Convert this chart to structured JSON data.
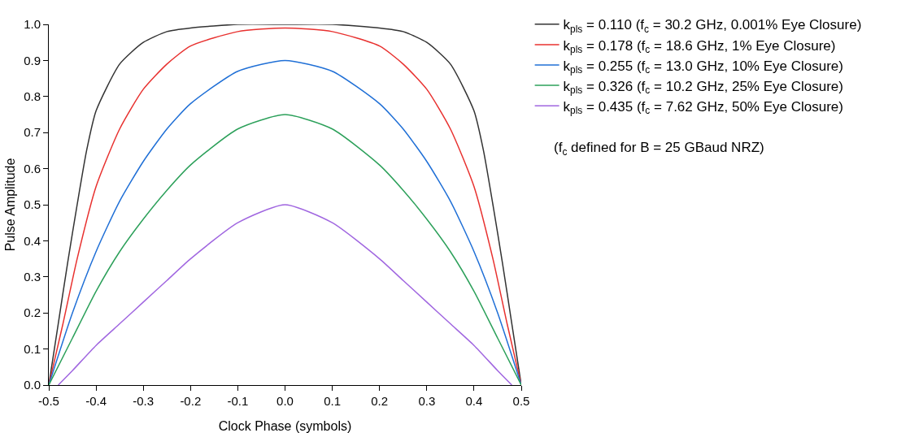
{
  "chart_data": {
    "type": "line",
    "xlabel": "Clock Phase (symbols)",
    "ylabel": "Pulse Amplitude",
    "annotations": [
      "(f$_{c}$ defined for B = 25 GBaud NRZ)"
    ],
    "xlim": [
      -0.5,
      0.5
    ],
    "ylim": [
      0,
      1.0
    ],
    "xticks": [
      -0.5,
      -0.4,
      -0.3,
      -0.2,
      -0.1,
      {
        "value": 0,
        "label": "0.0"
      },
      0.1,
      0.2,
      0.3,
      0.4,
      0.5
    ],
    "yticks": [
      {
        "value": 0,
        "label": "0.0"
      },
      0.1,
      0.2,
      0.3,
      0.4,
      0.5,
      0.6,
      0.7,
      0.8,
      0.9,
      {
        "value": 1,
        "label": "1.0"
      }
    ],
    "grid": false,
    "legend": "top right",
    "marker": "none",
    "line_style": "solid",
    "series": [
      {
        "name": "k$_{pls}$ = 0.110 (f$_{c}$ = 30.2 GHz, 0.001% Eye Closure)",
        "color": "#333333",
        "x": [
          -0.5,
          -0.48,
          -0.46,
          -0.44,
          -0.42,
          -0.4,
          -0.35,
          -0.3,
          -0.25,
          -0.2,
          -0.1,
          0,
          0.1,
          0.2,
          0.25,
          0.3,
          0.35,
          0.4,
          0.42,
          0.44,
          0.46,
          0.48,
          0.5
        ],
        "values": [
          0,
          0.17,
          0.34,
          0.5,
          0.65,
          0.76,
          0.89,
          0.95,
          0.98,
          0.99,
          1.0,
          1.0,
          1.0,
          0.99,
          0.98,
          0.95,
          0.89,
          0.76,
          0.65,
          0.5,
          0.34,
          0.17,
          0
        ]
      },
      {
        "name": "k$_{pls}$ = 0.178 (f$_{c}$ = 18.6 GHz, 1% Eye Closure)",
        "color": "#e8312f",
        "x": [
          -0.5,
          -0.47,
          -0.44,
          -0.4,
          -0.35,
          -0.3,
          -0.25,
          -0.2,
          -0.1,
          0,
          0.1,
          0.2,
          0.25,
          0.3,
          0.35,
          0.4,
          0.44,
          0.47,
          0.5
        ],
        "values": [
          0,
          0.17,
          0.35,
          0.55,
          0.71,
          0.82,
          0.89,
          0.94,
          0.98,
          0.99,
          0.98,
          0.94,
          0.89,
          0.82,
          0.71,
          0.55,
          0.35,
          0.17,
          0
        ]
      },
      {
        "name": "k$_{pls}$ = 0.255 (f$_{c}$ = 13.0 GHz, 10% Eye Closure)",
        "color": "#1f6fd6",
        "x": [
          -0.5,
          -0.45,
          -0.4,
          -0.35,
          -0.3,
          -0.25,
          -0.2,
          -0.1,
          0,
          0.1,
          0.2,
          0.25,
          0.3,
          0.35,
          0.4,
          0.45,
          0.5
        ],
        "values": [
          0,
          0.2,
          0.37,
          0.51,
          0.62,
          0.71,
          0.78,
          0.87,
          0.9,
          0.87,
          0.78,
          0.71,
          0.62,
          0.51,
          0.37,
          0.2,
          0
        ]
      },
      {
        "name": "k$_{pls}$ = 0.326 (f$_{c}$ = 10.2 GHz, 25% Eye Closure)",
        "color": "#2ca05a",
        "x": [
          -0.5,
          -0.45,
          -0.4,
          -0.35,
          -0.3,
          -0.25,
          -0.2,
          -0.1,
          0,
          0.1,
          0.2,
          0.25,
          0.3,
          0.35,
          0.4,
          0.45,
          0.5
        ],
        "values": [
          0,
          0.13,
          0.26,
          0.37,
          0.46,
          0.54,
          0.61,
          0.71,
          0.75,
          0.71,
          0.61,
          0.54,
          0.46,
          0.37,
          0.26,
          0.13,
          0
        ]
      },
      {
        "name": "k$_{pls}$ = 0.435 (f$_{c}$ = 7.62 GHz, 50% Eye Closure)",
        "color": "#a066e0",
        "x": [
          -0.48,
          -0.45,
          -0.4,
          -0.35,
          -0.3,
          -0.25,
          -0.2,
          -0.1,
          0,
          0.1,
          0.2,
          0.25,
          0.3,
          0.35,
          0.4,
          0.45,
          0.48
        ],
        "values": [
          0,
          0.04,
          0.11,
          0.17,
          0.23,
          0.29,
          0.35,
          0.45,
          0.5,
          0.45,
          0.35,
          0.29,
          0.23,
          0.17,
          0.11,
          0.04,
          0
        ]
      }
    ]
  }
}
